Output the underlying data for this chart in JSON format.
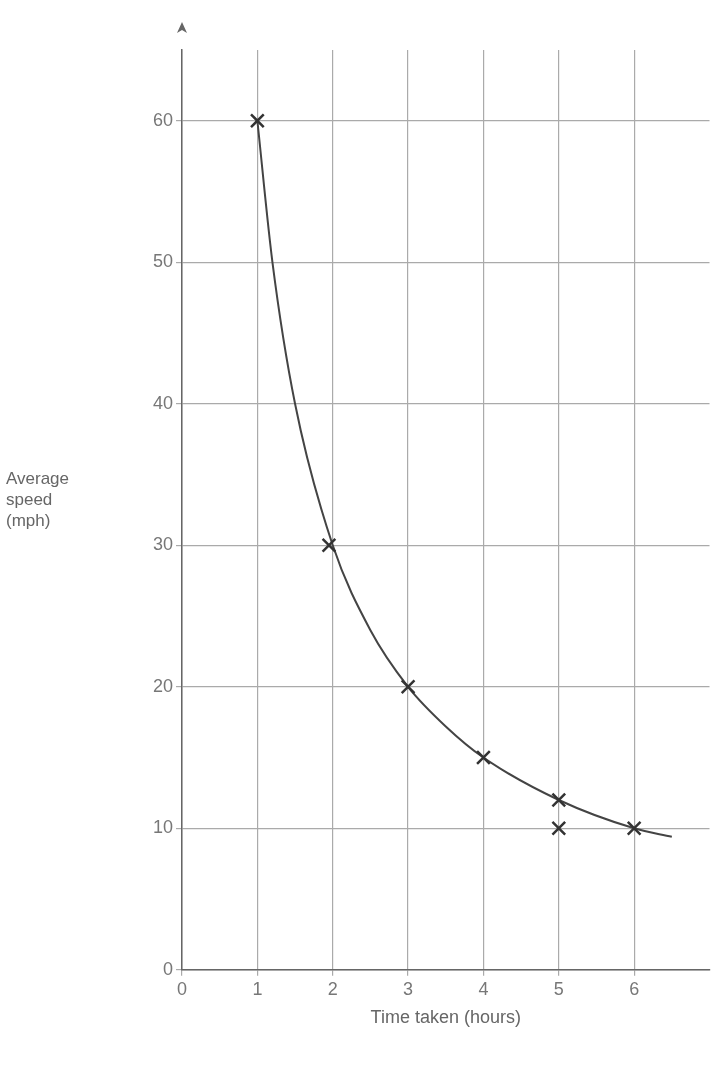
{
  "chart_data": {
    "type": "scatter",
    "xlabel": "Time taken (hours)",
    "ylabel": "Average speed (mph)",
    "xlim": [
      0,
      7
    ],
    "ylim": [
      0,
      65
    ],
    "xticks": [
      0,
      1,
      2,
      3,
      4,
      5,
      6
    ],
    "yticks": [
      0,
      10,
      20,
      30,
      40,
      50,
      60
    ],
    "grid": true,
    "marker": "cross",
    "series": [
      {
        "color": "#333333",
        "x": [
          1,
          1.95,
          3,
          4,
          5,
          5,
          6
        ],
        "values": [
          60,
          30,
          20,
          15,
          12,
          10,
          10
        ]
      },
      {
        "type": "line",
        "marker": "none",
        "color": "#444444",
        "x": [
          1,
          1.2,
          1.5,
          2,
          2.5,
          3,
          3.5,
          4,
          5,
          6,
          6.5
        ],
        "values": [
          60,
          50,
          40,
          30,
          24,
          20,
          17.2,
          15,
          12,
          10,
          9.4
        ]
      }
    ]
  }
}
